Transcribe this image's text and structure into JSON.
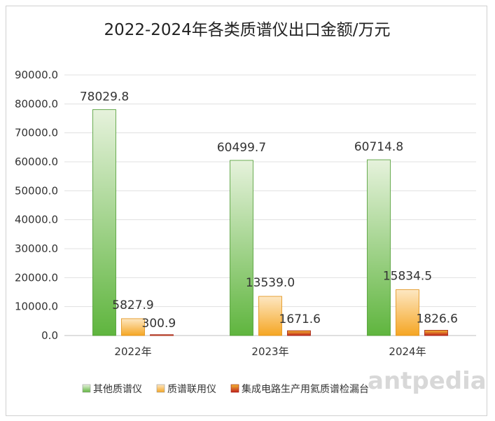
{
  "chart_data": {
    "type": "bar",
    "title": "2022-2024年各类质谱仪出口金额/万元",
    "categories": [
      "2022年",
      "2023年",
      "2024年"
    ],
    "series": [
      {
        "name": "其他质谱仪",
        "values": [
          78029.8,
          60499.7,
          60714.8
        ],
        "color": "#5fb53e",
        "color_light": "#e6f2dc"
      },
      {
        "name": "质谱联用仪",
        "values": [
          5827.9,
          13539.0,
          15834.5
        ],
        "color": "#f5a623",
        "color_light": "#fde7c2"
      },
      {
        "name": "集成电路生产用氦质谱检漏台",
        "values": [
          300.9,
          1671.6,
          1826.6
        ],
        "color": "#c0241c",
        "color_light": "#f2b632"
      }
    ],
    "data_labels": [
      [
        "78029.8",
        "60499.7",
        "60714.8"
      ],
      [
        "5827.9",
        "13539.0",
        "15834.5"
      ],
      [
        "300.9",
        "1671.6",
        "1826.6"
      ]
    ],
    "ylim": [
      0,
      90000
    ],
    "yticks": [
      "0.0",
      "10000.0",
      "20000.0",
      "30000.0",
      "40000.0",
      "50000.0",
      "60000.0",
      "70000.0",
      "80000.0",
      "90000.0"
    ],
    "grid": true,
    "legend_position": "bottom"
  },
  "watermark": "antpedia"
}
